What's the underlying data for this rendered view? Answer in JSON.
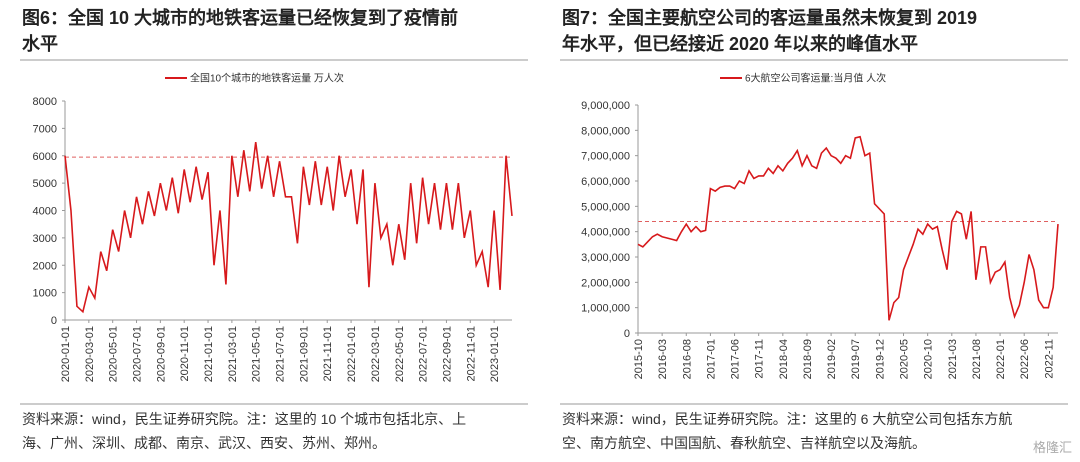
{
  "chart_data": [
    {
      "type": "line",
      "title": [
        "图6：全国 10 大城市的地铁客运量已经恢复到了疫情前",
        "水平"
      ],
      "legend": "全国10个城市的地铁客运量 万人次",
      "source": [
        "资料来源：wind，民生证券研究院。注：这里的 10 个城市包括北京、上",
        "海、广州、深圳、成都、南京、武汉、西安、苏州、郑州。"
      ],
      "categories": [
        "2020-01-01",
        null,
        null,
        null,
        "2020-03-01",
        null,
        null,
        null,
        "2020-05-01",
        null,
        null,
        null,
        "2020-07-01",
        null,
        null,
        null,
        "2020-09-01",
        null,
        null,
        null,
        "2020-11-01",
        null,
        null,
        null,
        "2021-01-01",
        null,
        null,
        null,
        "2021-03-01",
        null,
        null,
        null,
        "2021-05-01",
        null,
        null,
        null,
        "2021-07-01",
        null,
        null,
        null,
        "2021-09-01",
        null,
        null,
        null,
        "2021-11-01",
        null,
        null,
        null,
        "2022-01-01",
        null,
        null,
        null,
        "2022-03-01",
        null,
        null,
        null,
        "2022-05-01",
        null,
        null,
        null,
        "2022-07-01",
        null,
        null,
        null,
        "2022-09-01",
        null,
        null,
        null,
        "2022-11-01",
        null,
        null,
        null,
        "2023-01-01",
        null,
        null,
        null
      ],
      "series": [
        {
          "name": "全国10个城市的地铁客运量 万人次",
          "color": "#d7191c",
          "values": [
            6000,
            4000,
            500,
            300,
            1200,
            800,
            2500,
            1800,
            3300,
            2500,
            4000,
            3000,
            4500,
            3500,
            4700,
            3800,
            5000,
            4000,
            5200,
            3900,
            5500,
            4300,
            5600,
            4400,
            5400,
            2000,
            4000,
            1300,
            6000,
            4500,
            6200,
            4700,
            6500,
            4800,
            6000,
            4500,
            5800,
            4500,
            4500,
            2800,
            5600,
            4200,
            5800,
            4200,
            5600,
            4000,
            6000,
            4500,
            5500,
            3500,
            5500,
            1200,
            5000,
            3000,
            3500,
            2000,
            3500,
            2200,
            5000,
            2800,
            5200,
            3500,
            5000,
            3300,
            5000,
            3300,
            5000,
            3000,
            4000,
            2000,
            2500,
            1200,
            4000,
            1100,
            6000,
            3800
          ]
        }
      ],
      "reference_line": 5950,
      "ylim": [
        0,
        8000
      ],
      "yticks": [
        0,
        1000,
        2000,
        3000,
        4000,
        5000,
        6000,
        7000,
        8000
      ]
    },
    {
      "type": "line",
      "title": [
        "图7：全国主要航空公司的客运量虽然未恢复到 2019",
        "年水平，但已经接近 2020 年以来的峰值水平"
      ],
      "legend": "6大航空公司客运量:当月值 人次",
      "source": [
        "资料来源：wind，民生证券研究院。注：这里的 6 大航空公司包括东方航",
        "空、南方航空、中国国航、春秋航空、吉祥航空以及海航。"
      ],
      "categories": [
        "2015-10",
        null,
        null,
        null,
        null,
        "2016-03",
        null,
        null,
        null,
        null,
        "2016-08",
        null,
        null,
        null,
        null,
        "2017-01",
        null,
        null,
        null,
        null,
        "2017-06",
        null,
        null,
        null,
        null,
        "2017-11",
        null,
        null,
        null,
        null,
        "2018-04",
        null,
        null,
        null,
        null,
        "2018-09",
        null,
        null,
        null,
        null,
        "2019-02",
        null,
        null,
        null,
        null,
        "2019-07",
        null,
        null,
        null,
        null,
        "2019-12",
        null,
        null,
        null,
        null,
        "2020-05",
        null,
        null,
        null,
        null,
        "2020-10",
        null,
        null,
        null,
        null,
        "2021-03",
        null,
        null,
        null,
        null,
        "2021-08",
        null,
        null,
        null,
        null,
        "2022-01",
        null,
        null,
        null,
        null,
        "2022-06",
        null,
        null,
        null,
        null,
        "2022-11",
        null,
        null
      ],
      "series": [
        {
          "name": "6大航空公司客运量:当月值 人次",
          "color": "#d7191c",
          "values": [
            3500000,
            3400000,
            3600000,
            3800000,
            3900000,
            3800000,
            3750000,
            3700000,
            3650000,
            4000000,
            4300000,
            4000000,
            4200000,
            4000000,
            4050000,
            5700000,
            5600000,
            5750000,
            5800000,
            5800000,
            5700000,
            6000000,
            5900000,
            6400000,
            6100000,
            6200000,
            6200000,
            6500000,
            6300000,
            6600000,
            6400000,
            6700000,
            6900000,
            7200000,
            6600000,
            7000000,
            6600000,
            6500000,
            7100000,
            7300000,
            7000000,
            6900000,
            6700000,
            7000000,
            6900000,
            7700000,
            7750000,
            7000000,
            7100000,
            5100000,
            4900000,
            4700000,
            500000,
            1200000,
            1400000,
            2500000,
            3000000,
            3500000,
            4100000,
            3900000,
            4300000,
            4100000,
            4200000,
            3300000,
            2500000,
            4400000,
            4800000,
            4700000,
            3700000,
            4800000,
            2100000,
            3400000,
            3400000,
            2000000,
            2400000,
            2500000,
            2800000,
            1400000,
            650000,
            1100000,
            2000000,
            3100000,
            2500000,
            1300000,
            1000000,
            1000000,
            1800000,
            4300000
          ]
        }
      ],
      "reference_line": 4400000,
      "ylim": [
        0,
        9000000
      ],
      "yticks": [
        0,
        {
          "value": 1000000,
          "label": "1,000,000"
        },
        {
          "value": 2000000,
          "label": "2,000,000"
        },
        {
          "value": 3000000,
          "label": "3,000,000"
        },
        {
          "value": 4000000,
          "label": "4,000,000"
        },
        {
          "value": 5000000,
          "label": "5,000,000"
        },
        {
          "value": 6000000,
          "label": "6,000,000"
        },
        {
          "value": 7000000,
          "label": "7,000,000"
        },
        {
          "value": 8000000,
          "label": "8,000,000"
        },
        {
          "value": 9000000,
          "label": "9,000,000"
        }
      ]
    }
  ],
  "watermark": "格隆汇"
}
